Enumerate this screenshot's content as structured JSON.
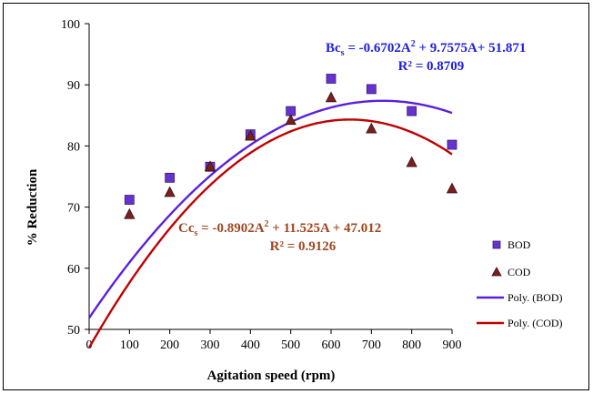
{
  "chart_data": {
    "type": "scatter",
    "xlabel": "Agitation speed (rpm)",
    "ylabel": "% Reduction",
    "xlim": [
      0,
      900
    ],
    "ylim": [
      50,
      100
    ],
    "xticks": [
      "0",
      "100",
      "200",
      "300",
      "400",
      "500",
      "600",
      "700",
      "800",
      "900"
    ],
    "yticks": [
      "50",
      "60",
      "70",
      "80",
      "90",
      "100"
    ],
    "grid": false,
    "legend_position": "right",
    "series": [
      {
        "name": "BOD",
        "marker": "square",
        "color": "#6633cc",
        "x": [
          100,
          200,
          300,
          400,
          500,
          600,
          700,
          800,
          900
        ],
        "values": [
          71.2,
          74.8,
          76.6,
          81.9,
          85.7,
          91.0,
          89.3,
          85.7,
          80.2
        ]
      },
      {
        "name": "COD",
        "marker": "triangle",
        "color": "#7a1f1f",
        "x": [
          100,
          200,
          300,
          400,
          500,
          600,
          700,
          800,
          900
        ],
        "values": [
          68.8,
          72.4,
          76.6,
          81.6,
          84.2,
          87.9,
          82.8,
          77.3,
          73.0
        ]
      }
    ],
    "trendlines": [
      {
        "name": "Poly. (BOD)",
        "type": "poly2",
        "color": "#5a1fe0",
        "coefficients": [
          -0.6702,
          9.7575,
          51.871
        ],
        "x_unit_divisor": 100,
        "equation_main": "Bc",
        "equation_sub": "s",
        "equation_rest": " = -0.6702A",
        "equation_sup": "2",
        "equation_tail": " + 9.7575A+ 51.871",
        "r2": "R² = 0.8709",
        "label_color": "#2020e0"
      },
      {
        "name": "Poly. (COD)",
        "type": "poly2",
        "color": "#c00000",
        "coefficients": [
          -0.8902,
          11.525,
          47.012
        ],
        "x_unit_divisor": 100,
        "equation_main": "Cc",
        "equation_sub": "s",
        "equation_rest": " = -0.8902A",
        "equation_sup": "2",
        "equation_tail": " + 11.525A + 47.012",
        "r2": "R² = 0.9126",
        "label_color": "#a0461e"
      }
    ],
    "legend": [
      "BOD",
      "COD",
      "Poly. (BOD)",
      "Poly. (COD)"
    ]
  }
}
